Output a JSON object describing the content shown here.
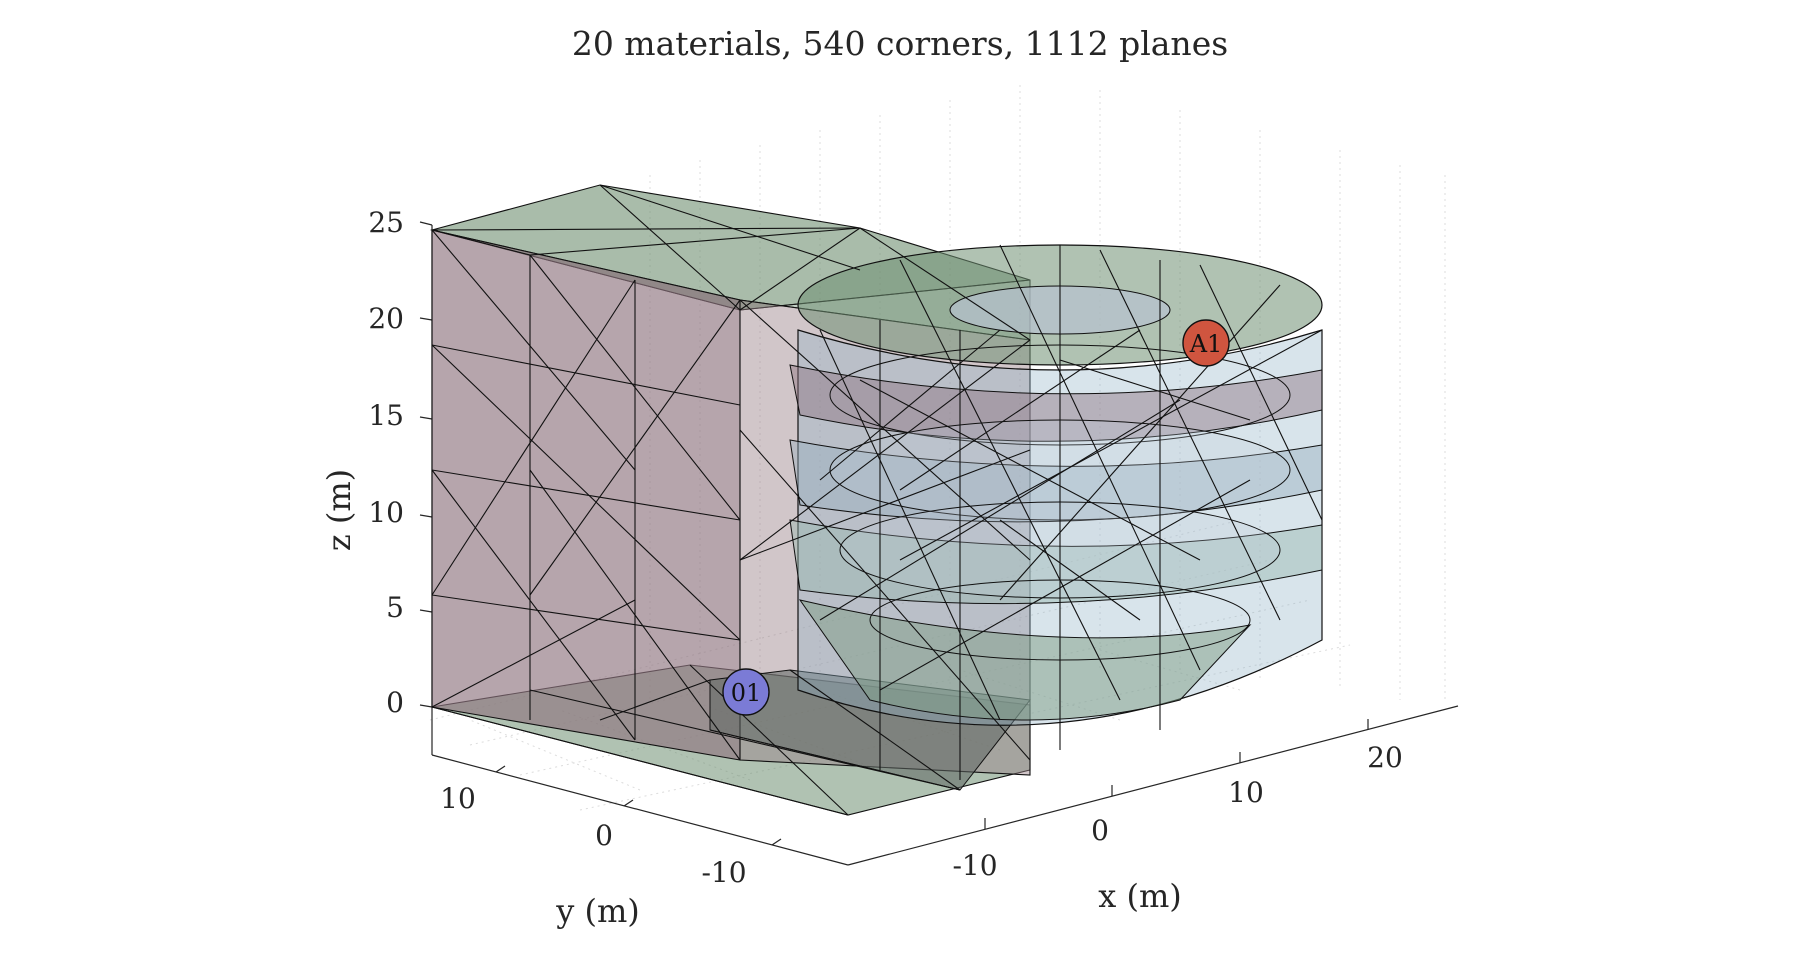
{
  "title": "20 materials, 540 corners, 1112 planes",
  "axes": {
    "x": {
      "label": "x (m)",
      "ticks": [
        "-10",
        "0",
        "10",
        "20"
      ]
    },
    "y": {
      "label": "y (m)",
      "ticks": [
        "10",
        "0",
        "-10"
      ]
    },
    "z": {
      "label": "z (m)",
      "ticks": [
        "0",
        "5",
        "10",
        "15",
        "20",
        "25"
      ]
    }
  },
  "markers": [
    {
      "id": "source",
      "label": "01",
      "color": "#7b7bd6"
    },
    {
      "id": "receiver",
      "label": "A1",
      "color": "#d0553f"
    }
  ],
  "colors": {
    "green_face": "#6f8f72",
    "pink_face": "#8f7480",
    "blue_face": "#8fb3c6",
    "edge": "#111111"
  }
}
